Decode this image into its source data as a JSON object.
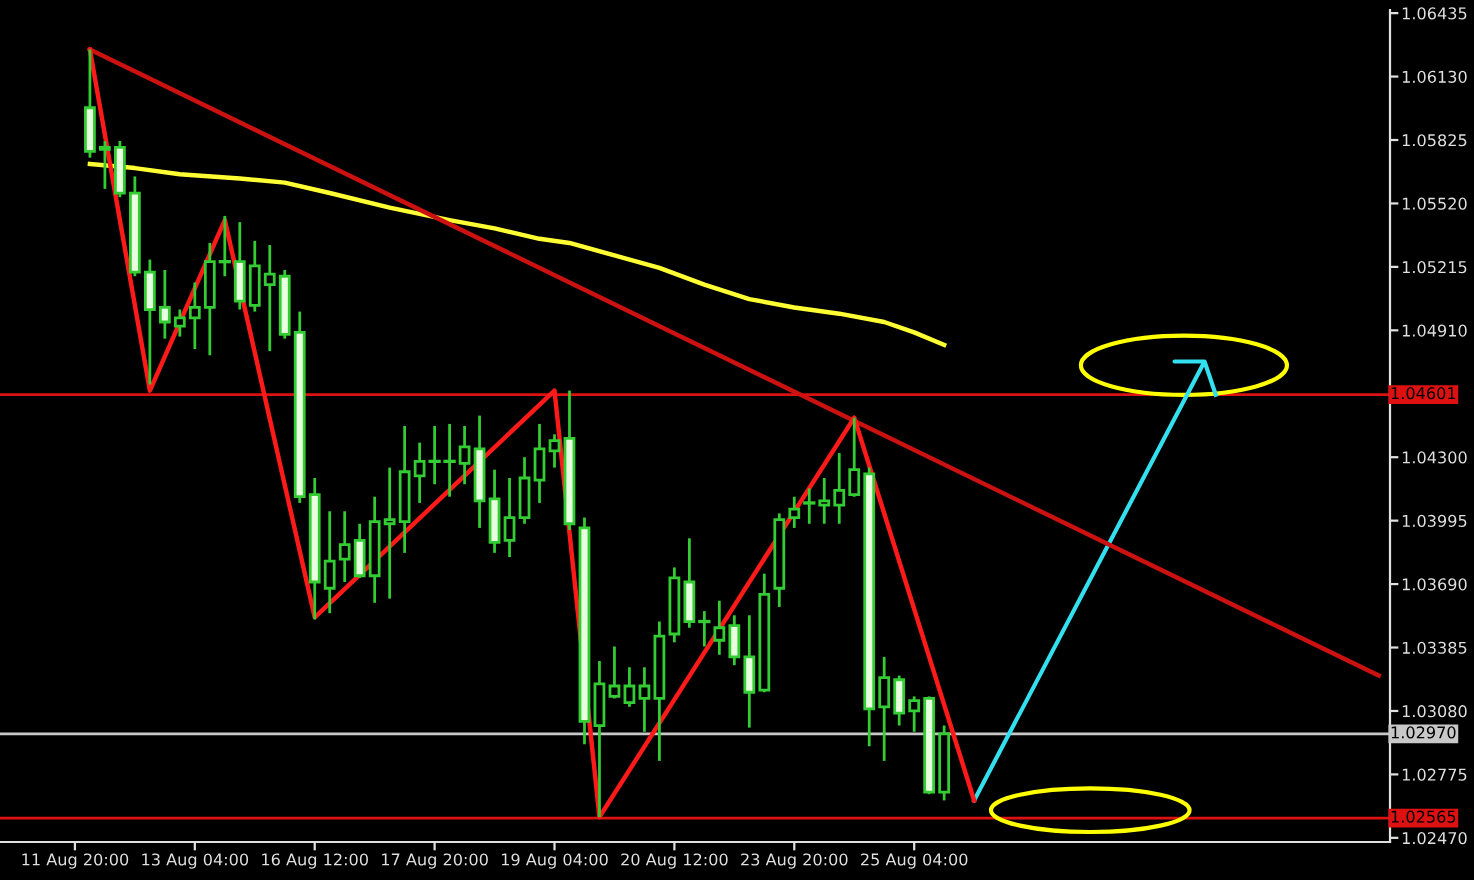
{
  "chart_data": {
    "type": "candlestick",
    "categories": [
      "11 Aug 20:00",
      null,
      null,
      null,
      null,
      null,
      null,
      null,
      "13 Aug 04:00",
      null,
      null,
      null,
      null,
      null,
      null,
      null,
      "16 Aug 12:00",
      null,
      null,
      null,
      null,
      null,
      null,
      null,
      "17 Aug 20:00",
      null,
      null,
      null,
      null,
      null,
      null,
      null,
      "19 Aug 04:00",
      null,
      null,
      null,
      null,
      null,
      null,
      null,
      "20 Aug 12:00",
      null,
      null,
      null,
      null,
      null,
      null,
      null,
      "23 Aug 20:00",
      null,
      null,
      null,
      null,
      null,
      null,
      null,
      "25 Aug 04:00",
      null,
      null,
      null,
      null,
      null,
      null,
      null,
      null,
      null,
      null,
      null,
      null,
      null,
      null,
      null,
      null,
      null,
      null,
      null,
      null,
      null,
      null,
      null,
      null,
      null,
      null,
      null,
      null,
      null,
      null,
      null
    ],
    "ohlc": [
      null,
      [
        1.0598,
        1.0626,
        1.0574,
        1.0577
      ],
      [
        1.0579,
        1.0582,
        1.0559,
        1.0578
      ],
      [
        1.0579,
        1.0582,
        1.0555,
        1.0557
      ],
      [
        1.0557,
        1.0565,
        1.0517,
        1.0519
      ],
      [
        1.0519,
        1.0525,
        1.0465,
        1.0501
      ],
      [
        1.0502,
        1.052,
        1.0487,
        1.0495
      ],
      [
        1.0493,
        1.0501,
        1.0488,
        1.0497
      ],
      [
        1.0497,
        1.0514,
        1.0482,
        1.0502
      ],
      [
        1.0502,
        1.0533,
        1.0479,
        1.0524
      ],
      [
        1.0524,
        1.0546,
        1.0517,
        1.0524
      ],
      [
        1.0524,
        1.0543,
        1.0501,
        1.0505
      ],
      [
        1.0503,
        1.0534,
        1.05,
        1.0522
      ],
      [
        1.0513,
        1.0532,
        1.0481,
        1.0518
      ],
      [
        1.0517,
        1.052,
        1.0487,
        1.0489
      ],
      [
        1.049,
        1.05,
        1.0408,
        1.0411
      ],
      [
        1.0412,
        1.042,
        1.0352,
        1.037
      ],
      [
        1.0367,
        1.0404,
        1.0355,
        1.038
      ],
      [
        1.0381,
        1.0404,
        1.037,
        1.0388
      ],
      [
        1.039,
        1.0398,
        1.0372,
        1.0373
      ],
      [
        1.0373,
        1.0411,
        1.036,
        1.0399
      ],
      [
        1.0398,
        1.0425,
        1.0362,
        1.04
      ],
      [
        1.0399,
        1.0445,
        1.0384,
        1.0423
      ],
      [
        1.0421,
        1.0437,
        1.0408,
        1.0428
      ],
      [
        1.0428,
        1.0445,
        1.0417,
        1.0428
      ],
      [
        1.0428,
        1.0446,
        1.0411,
        1.0428
      ],
      [
        1.0427,
        1.0445,
        1.0417,
        1.0435
      ],
      [
        1.0434,
        1.045,
        1.0396,
        1.0409
      ],
      [
        1.041,
        1.0424,
        1.0384,
        1.0389
      ],
      [
        1.039,
        1.042,
        1.0382,
        1.0401
      ],
      [
        1.0401,
        1.043,
        1.0398,
        1.042
      ],
      [
        1.0419,
        1.0446,
        1.0408,
        1.0434
      ],
      [
        1.0433,
        1.0441,
        1.0425,
        1.0438
      ],
      [
        1.0439,
        1.0462,
        1.0395,
        1.0398
      ],
      [
        1.0396,
        1.0401,
        1.0292,
        1.0303
      ],
      [
        1.0301,
        1.0332,
        1.0257,
        1.0321
      ],
      [
        1.0315,
        1.0339,
        1.0314,
        1.032
      ],
      [
        1.0312,
        1.0329,
        1.031,
        1.032
      ],
      [
        1.0314,
        1.0329,
        1.0298,
        1.032
      ],
      [
        1.0314,
        1.0351,
        1.0284,
        1.0344
      ],
      [
        1.0345,
        1.0377,
        1.0341,
        1.0372
      ],
      [
        1.037,
        1.0391,
        1.0348,
        1.0351
      ],
      [
        1.0351,
        1.0356,
        1.0339,
        1.0351
      ],
      [
        1.0342,
        1.0361,
        1.0335,
        1.0348
      ],
      [
        1.0349,
        1.0354,
        1.033,
        1.0334
      ],
      [
        1.0334,
        1.0354,
        1.03,
        1.0317
      ],
      [
        1.0318,
        1.0374,
        1.0317,
        1.0364
      ],
      [
        1.0367,
        1.0403,
        1.0358,
        1.04
      ],
      [
        1.0401,
        1.0411,
        1.0396,
        1.0405
      ],
      [
        1.0408,
        1.0415,
        1.0398,
        1.0408
      ],
      [
        1.0407,
        1.042,
        1.0398,
        1.0409
      ],
      [
        1.0407,
        1.0432,
        1.0398,
        1.0414
      ],
      [
        1.0412,
        1.0449,
        1.0411,
        1.0424
      ],
      [
        1.0422,
        1.0425,
        1.0291,
        1.0309
      ],
      [
        1.031,
        1.0334,
        1.0284,
        1.0324
      ],
      [
        1.0323,
        1.0325,
        1.0301,
        1.0307
      ],
      [
        1.0308,
        1.0315,
        1.0298,
        1.0313
      ],
      [
        1.0314,
        1.0315,
        1.0268,
        1.0269
      ],
      [
        1.0269,
        1.0301,
        1.0265,
        1.0297
      ],
      null,
      null,
      null,
      null,
      null,
      null,
      null,
      null,
      null,
      null,
      null,
      null,
      null,
      null,
      null,
      null,
      null,
      null,
      null,
      null,
      null,
      null,
      null,
      null,
      null,
      null,
      null,
      null,
      null
    ],
    "color": "#33cc33",
    "colors": [
      null,
      "#e8ffe0",
      "#e8ffe0",
      "#e8ffe0",
      "#e8ffe0",
      "#e8ffe0",
      "#e8ffe0",
      "#000000",
      "#000000",
      "#000000",
      "#33cc33",
      "#e8ffe0",
      "#000000",
      "#000000",
      "#e8ffe0",
      "#e8ffe0",
      "#e8ffe0",
      "#000000",
      "#000000",
      "#e8ffe0",
      "#000000",
      "#000000",
      "#000000",
      "#000000",
      "#33cc33",
      "#33cc33",
      "#000000",
      "#e8ffe0",
      "#e8ffe0",
      "#000000",
      "#000000",
      "#000000",
      "#000000",
      "#e8ffe0",
      "#e8ffe0",
      "#000000",
      "#000000",
      "#000000",
      "#000000",
      "#000000",
      "#000000",
      "#e8ffe0",
      "#33cc33",
      "#000000",
      "#e8ffe0",
      "#e8ffe0",
      "#000000",
      "#000000",
      "#000000",
      "#33cc33",
      "#000000",
      "#000000",
      "#000000",
      "#e8ffe0",
      "#000000",
      "#e8ffe0",
      "#000000",
      "#e8ffe0",
      "#000000",
      null,
      null,
      null,
      null,
      null,
      null,
      null,
      null,
      null,
      null,
      null,
      null,
      null,
      null,
      null,
      null,
      null,
      null,
      null,
      null,
      null,
      null,
      null,
      null,
      null,
      null,
      null,
      null,
      null
    ],
    "series": [
      {
        "type": "line",
        "color": "#ffff33",
        "values": [
          null,
          1.0571,
          null,
          null,
          1.0569,
          null,
          null,
          1.0566,
          null,
          null,
          null,
          1.0564,
          null,
          null,
          1.0562,
          null,
          null,
          1.0557,
          null,
          null,
          null,
          1.055,
          null,
          null,
          null,
          1.0544,
          null,
          null,
          1.054,
          null,
          null,
          1.0535,
          null,
          1.0533,
          null,
          null,
          1.0527,
          null,
          null,
          1.0521,
          null,
          null,
          1.0513,
          null,
          null,
          1.0506,
          null,
          null,
          1.0502,
          null,
          null,
          1.0499,
          null,
          null,
          1.0495,
          null,
          1.049,
          null,
          1.0484,
          null,
          null,
          null,
          null,
          null,
          null,
          null,
          null,
          null,
          null,
          null,
          null,
          null,
          null,
          null,
          null,
          null,
          null,
          null,
          null,
          null,
          null,
          null,
          null,
          null,
          null,
          null,
          null,
          null
        ]
      },
      {
        "type": "line",
        "color": "#cc1111",
        "values": [
          null,
          1.0626,
          null,
          null,
          null,
          null,
          null,
          null,
          null,
          null,
          null,
          null,
          null,
          null,
          null,
          null,
          null,
          null,
          null,
          null,
          null,
          null,
          null,
          null,
          null,
          null,
          null,
          null,
          null,
          null,
          null,
          null,
          null,
          null,
          null,
          null,
          null,
          null,
          null,
          null,
          null,
          null,
          null,
          null,
          null,
          null,
          null,
          null,
          null,
          null,
          null,
          null,
          null,
          null,
          null,
          null,
          null,
          null,
          null,
          null,
          null,
          null,
          null,
          null,
          null,
          null,
          null,
          null,
          null,
          null,
          null,
          null,
          null,
          null,
          null,
          null,
          null,
          null,
          null,
          null,
          null,
          null,
          null,
          null,
          null,
          null,
          null,
          1.0325
        ]
      },
      {
        "type": "line",
        "color": "#ff1a1a",
        "values": [
          null,
          1.0626,
          null,
          null,
          null,
          1.0462,
          null,
          null,
          null,
          null,
          1.0544,
          null,
          null,
          null,
          null,
          null,
          1.0353,
          null,
          null,
          null,
          null,
          null,
          null,
          null,
          null,
          null,
          null,
          null,
          null,
          null,
          null,
          null,
          1.0462,
          null,
          null,
          1.0257,
          null,
          null,
          null,
          null,
          null,
          null,
          null,
          null,
          null,
          null,
          null,
          null,
          null,
          null,
          null,
          null,
          1.0449,
          null,
          null,
          null,
          null,
          null,
          null,
          null,
          1.0265,
          null,
          null,
          null,
          null,
          null,
          null,
          null,
          null,
          null,
          null,
          null,
          null,
          null,
          null,
          null,
          null,
          null,
          null,
          null,
          null,
          null,
          null,
          null,
          null,
          null,
          null,
          null
        ]
      }
    ],
    "ref_lines": [
      {
        "axis": "y",
        "value": 1.04601,
        "label": "1.04601",
        "color": "#dd1111"
      },
      {
        "axis": "y",
        "value": 1.02565,
        "label": "1.02565",
        "color": "#dd1111"
      },
      {
        "axis": "y",
        "value": 1.0297,
        "label": "1.02970",
        "color": "#c8c8c8"
      }
    ],
    "ylim": [
      1.0245,
      1.0645
    ],
    "yticks": [
      1.06435,
      {
        "value": 1.0613,
        "label": "1.06130"
      },
      1.05825,
      {
        "value": 1.0552,
        "label": "1.05520"
      },
      1.05215,
      {
        "value": 1.0491,
        "label": "1.04910"
      },
      {
        "value": 1.043,
        "label": "1.04300"
      },
      1.03995,
      {
        "value": 1.0369,
        "label": "1.03690"
      },
      1.03385,
      {
        "value": 1.0308,
        "label": "1.03080"
      },
      1.02775,
      {
        "value": 1.0247,
        "label": "1.02470"
      }
    ],
    "grid": false,
    "legend": false
  }
}
